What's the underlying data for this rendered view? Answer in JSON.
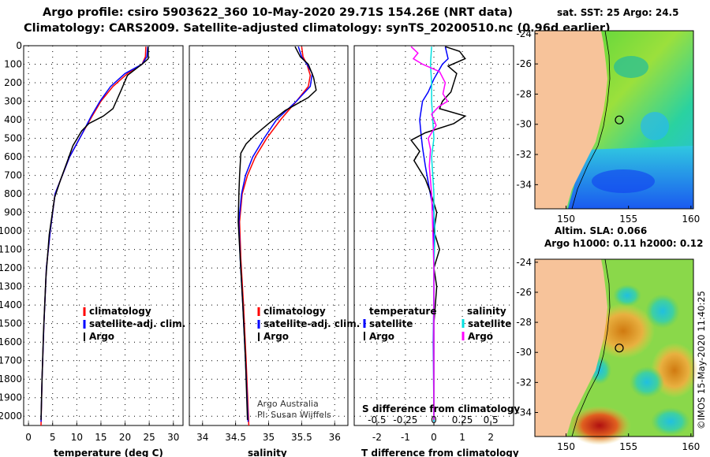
{
  "title_line1": "Argo profile: csiro 5903622_360 10-May-2020 29.71S 154.26E (NRT data)",
  "title_line2": "Climatology: CARS2009. Satellite-adjusted climatology: synTS_20200510.nc (0.96d earlier)",
  "colors": {
    "climatology": "#ff0000",
    "satellite": "#0000ff",
    "argo": "#000000",
    "sat_s": "#00e0e0",
    "argo_s": "#ff00ff",
    "land": "#f7c39a"
  },
  "depth_axis": {
    "min": 0,
    "max": 2050,
    "ticks": [
      "0",
      "100",
      "200",
      "300",
      "400",
      "500",
      "600",
      "700",
      "800",
      "900",
      "1000",
      "1100",
      "1200",
      "1300",
      "1400",
      "1500",
      "1600",
      "1700",
      "1800",
      "1900",
      "2000"
    ]
  },
  "chart_data": [
    {
      "type": "line",
      "panel": "temperature",
      "xlabel": "temperature (deg C)",
      "xlim": [
        -1,
        32
      ],
      "xticks": [
        "0",
        "5",
        "10",
        "15",
        "20",
        "25",
        "30"
      ],
      "xtick_values": [
        0,
        5,
        10,
        15,
        20,
        25,
        30
      ],
      "series": [
        {
          "name": "climatology",
          "color": "#ff0000",
          "points": [
            [
              24.3,
              5
            ],
            [
              24.2,
              60
            ],
            [
              23.5,
              100
            ],
            [
              20.5,
              150
            ],
            [
              17.5,
              220
            ],
            [
              15,
              300
            ],
            [
              13.2,
              380
            ],
            [
              11,
              480
            ],
            [
              8.5,
              600
            ],
            [
              7,
              700
            ],
            [
              5.5,
              800
            ],
            [
              4.5,
              1000
            ],
            [
              3.7,
              1200
            ],
            [
              3.2,
              1500
            ],
            [
              2.8,
              1800
            ],
            [
              2.6,
              2050
            ]
          ]
        },
        {
          "name": "satellite-adj. clim.",
          "color": "#0000ff",
          "points": [
            [
              24.7,
              5
            ],
            [
              24.5,
              60
            ],
            [
              23.5,
              100
            ],
            [
              20,
              150
            ],
            [
              17,
              220
            ],
            [
              14.8,
              300
            ],
            [
              13,
              380
            ],
            [
              11,
              480
            ],
            [
              8.5,
              600
            ],
            [
              7,
              700
            ],
            [
              5.5,
              800
            ],
            [
              4.5,
              1000
            ],
            [
              3.7,
              1200
            ],
            [
              3.2,
              1500
            ],
            [
              2.8,
              1800
            ],
            [
              2.6,
              2030
            ]
          ]
        },
        {
          "name": "Argo",
          "color": "#000000",
          "points": [
            [
              24.8,
              5
            ],
            [
              24.8,
              70
            ],
            [
              23.5,
              100
            ],
            [
              22.5,
              120
            ],
            [
              20.5,
              160
            ],
            [
              19.2,
              240
            ],
            [
              17.5,
              340
            ],
            [
              15.5,
              380
            ],
            [
              12.5,
              420
            ],
            [
              11,
              460
            ],
            [
              9.2,
              540
            ],
            [
              8.1,
              620
            ],
            [
              6.7,
              720
            ],
            [
              5.4,
              820
            ],
            [
              4.3,
              1020
            ],
            [
              3.6,
              1250
            ],
            [
              3.1,
              1550
            ],
            [
              2.8,
              1800
            ],
            [
              2.6,
              2020
            ]
          ]
        }
      ],
      "legend": [
        "climatology",
        "satellite-adj. clim.",
        "Argo"
      ]
    },
    {
      "type": "line",
      "panel": "salinity",
      "xlabel": "salinity",
      "xlim": [
        33.8,
        36.2
      ],
      "xticks": [
        "34",
        "34.5",
        "35",
        "35.5",
        "36"
      ],
      "xtick_values": [
        34,
        34.5,
        35,
        35.5,
        36
      ],
      "series": [
        {
          "name": "climatology",
          "color": "#ff0000",
          "points": [
            [
              35.5,
              5
            ],
            [
              35.52,
              60
            ],
            [
              35.58,
              100
            ],
            [
              35.63,
              160
            ],
            [
              35.6,
              220
            ],
            [
              35.42,
              300
            ],
            [
              35.18,
              400
            ],
            [
              34.97,
              500
            ],
            [
              34.8,
              600
            ],
            [
              34.68,
              700
            ],
            [
              34.6,
              800
            ],
            [
              34.56,
              950
            ],
            [
              34.58,
              1150
            ],
            [
              34.62,
              1400
            ],
            [
              34.66,
              1700
            ],
            [
              34.7,
              2050
            ]
          ]
        },
        {
          "name": "satellite-adj. clim.",
          "color": "#0000ff",
          "points": [
            [
              35.45,
              5
            ],
            [
              35.5,
              60
            ],
            [
              35.58,
              100
            ],
            [
              35.66,
              150
            ],
            [
              35.63,
              220
            ],
            [
              35.42,
              300
            ],
            [
              35.12,
              400
            ],
            [
              34.93,
              500
            ],
            [
              34.76,
              600
            ],
            [
              34.65,
              700
            ],
            [
              34.59,
              800
            ],
            [
              34.55,
              950
            ],
            [
              34.57,
              1150
            ],
            [
              34.61,
              1400
            ],
            [
              34.65,
              1700
            ],
            [
              34.69,
              2030
            ]
          ]
        },
        {
          "name": "Argo",
          "color": "#000000",
          "points": [
            [
              35.4,
              5
            ],
            [
              35.48,
              60
            ],
            [
              35.6,
              100
            ],
            [
              35.68,
              170
            ],
            [
              35.72,
              240
            ],
            [
              35.6,
              280
            ],
            [
              35.25,
              350
            ],
            [
              35.0,
              420
            ],
            [
              34.8,
              480
            ],
            [
              34.66,
              530
            ],
            [
              34.58,
              580
            ],
            [
              34.56,
              700
            ],
            [
              34.55,
              800
            ],
            [
              34.54,
              950
            ],
            [
              34.57,
              1150
            ],
            [
              34.61,
              1400
            ],
            [
              34.65,
              1700
            ],
            [
              34.68,
              2020
            ]
          ]
        }
      ],
      "legend": [
        "climatology",
        "satellite-adj. clim.",
        "Argo"
      ],
      "credit_line1": "Argo Australia",
      "credit_line2": "PI: Susan Wijffels"
    },
    {
      "type": "line",
      "panel": "difference",
      "xlabel": "T difference from climatology",
      "xlim": [
        -2.8,
        2.8
      ],
      "xticks": [
        "-2",
        "-1",
        "0",
        "1",
        "2"
      ],
      "xtick_values": [
        -2,
        -1,
        0,
        1,
        2
      ],
      "top_xlabel": "S difference from climatology",
      "top_xticks": [
        "-0.5",
        "-0.25",
        "0",
        "0.25",
        "0.5"
      ],
      "top_xtick_values": [
        -0.5,
        -0.25,
        0,
        0.25,
        0.5
      ],
      "series": [
        {
          "name": "satellite",
          "color": "#0000ff",
          "points": [
            [
              0.4,
              5
            ],
            [
              0.5,
              70
            ],
            [
              0.3,
              100
            ],
            [
              0,
              180
            ],
            [
              -0.2,
              250
            ],
            [
              -0.4,
              300
            ],
            [
              -0.5,
              400
            ],
            [
              -0.45,
              480
            ],
            [
              -0.4,
              550
            ],
            [
              -0.3,
              650
            ],
            [
              -0.15,
              780
            ],
            [
              0,
              900
            ],
            [
              0,
              1100
            ],
            [
              0,
              1300
            ],
            [
              -0.02,
              1600
            ],
            [
              0,
              2030
            ]
          ]
        },
        {
          "name": "Argo",
          "color": "#000000",
          "points": [
            [
              0.4,
              5
            ],
            [
              0.9,
              30
            ],
            [
              1.1,
              70
            ],
            [
              0.5,
              110
            ],
            [
              0.8,
              150
            ],
            [
              0.6,
              250
            ],
            [
              0.3,
              300
            ],
            [
              0.2,
              340
            ],
            [
              1.1,
              380
            ],
            [
              0.7,
              420
            ],
            [
              -0.3,
              470
            ],
            [
              -0.8,
              510
            ],
            [
              -0.5,
              570
            ],
            [
              -0.7,
              620
            ],
            [
              -0.3,
              720
            ],
            [
              -0.1,
              800
            ],
            [
              0.1,
              900
            ],
            [
              0,
              1000
            ],
            [
              0.2,
              1100
            ],
            [
              0,
              1200
            ],
            [
              0.1,
              1300
            ],
            [
              0,
              1500
            ],
            [
              0,
              1800
            ],
            [
              0,
              2020
            ]
          ]
        },
        {
          "name": "salinity satellite",
          "color": "#00e0e0",
          "points": [
            [
              -0.02,
              5
            ],
            [
              -0.03,
              100
            ],
            [
              -0.02,
              200
            ],
            [
              -0.02,
              300
            ],
            [
              -0.01,
              400
            ],
            [
              0,
              500
            ],
            [
              -0.02,
              600
            ],
            [
              -0.01,
              700
            ],
            [
              0,
              800
            ],
            [
              0,
              900
            ],
            [
              0.01,
              1000
            ],
            [
              0,
              1200
            ],
            [
              0,
              1500
            ],
            [
              0,
              1800
            ],
            [
              0,
              2030
            ]
          ]
        },
        {
          "name": "salinity Argo",
          "color": "#ff00ff",
          "points": [
            [
              -0.2,
              5
            ],
            [
              -0.14,
              40
            ],
            [
              -0.18,
              70
            ],
            [
              -0.1,
              100
            ],
            [
              0.05,
              140
            ],
            [
              0.1,
              200
            ],
            [
              0.08,
              260
            ],
            [
              0.12,
              300
            ],
            [
              0.04,
              330
            ],
            [
              -0.02,
              370
            ],
            [
              0.02,
              430
            ],
            [
              -0.05,
              500
            ],
            [
              -0.03,
              560
            ],
            [
              -0.04,
              650
            ],
            [
              -0.02,
              800
            ],
            [
              -0.01,
              1000
            ],
            [
              0,
              1200
            ],
            [
              0,
              1500
            ],
            [
              0,
              2020
            ]
          ]
        }
      ],
      "legend_headers": [
        "temperature",
        "salinity"
      ],
      "legend_left": [
        "satellite",
        "Argo"
      ],
      "legend_right": [
        "satellite",
        "Argo"
      ]
    }
  ],
  "maps": [
    {
      "title": "sat. SST: 25 Argo: 24.5",
      "lon_ticks": [
        "150",
        "155",
        "160"
      ],
      "lat_ticks": [
        "-24",
        "-26",
        "-28",
        "-30",
        "-32",
        "-34"
      ]
    },
    {
      "title_line1": "Altim. SLA: 0.066",
      "title_line2": "Argo h1000: 0.11 h2000: 0.12",
      "lon_ticks": [
        "150",
        "155",
        "160"
      ],
      "lat_ticks": [
        "-24",
        "-26",
        "-28",
        "-30",
        "-32",
        "-34"
      ]
    }
  ],
  "float_position": {
    "lon": 154.26,
    "lat": -29.71
  },
  "watermark": "©IMOS 15-May-2020 11:40:25"
}
